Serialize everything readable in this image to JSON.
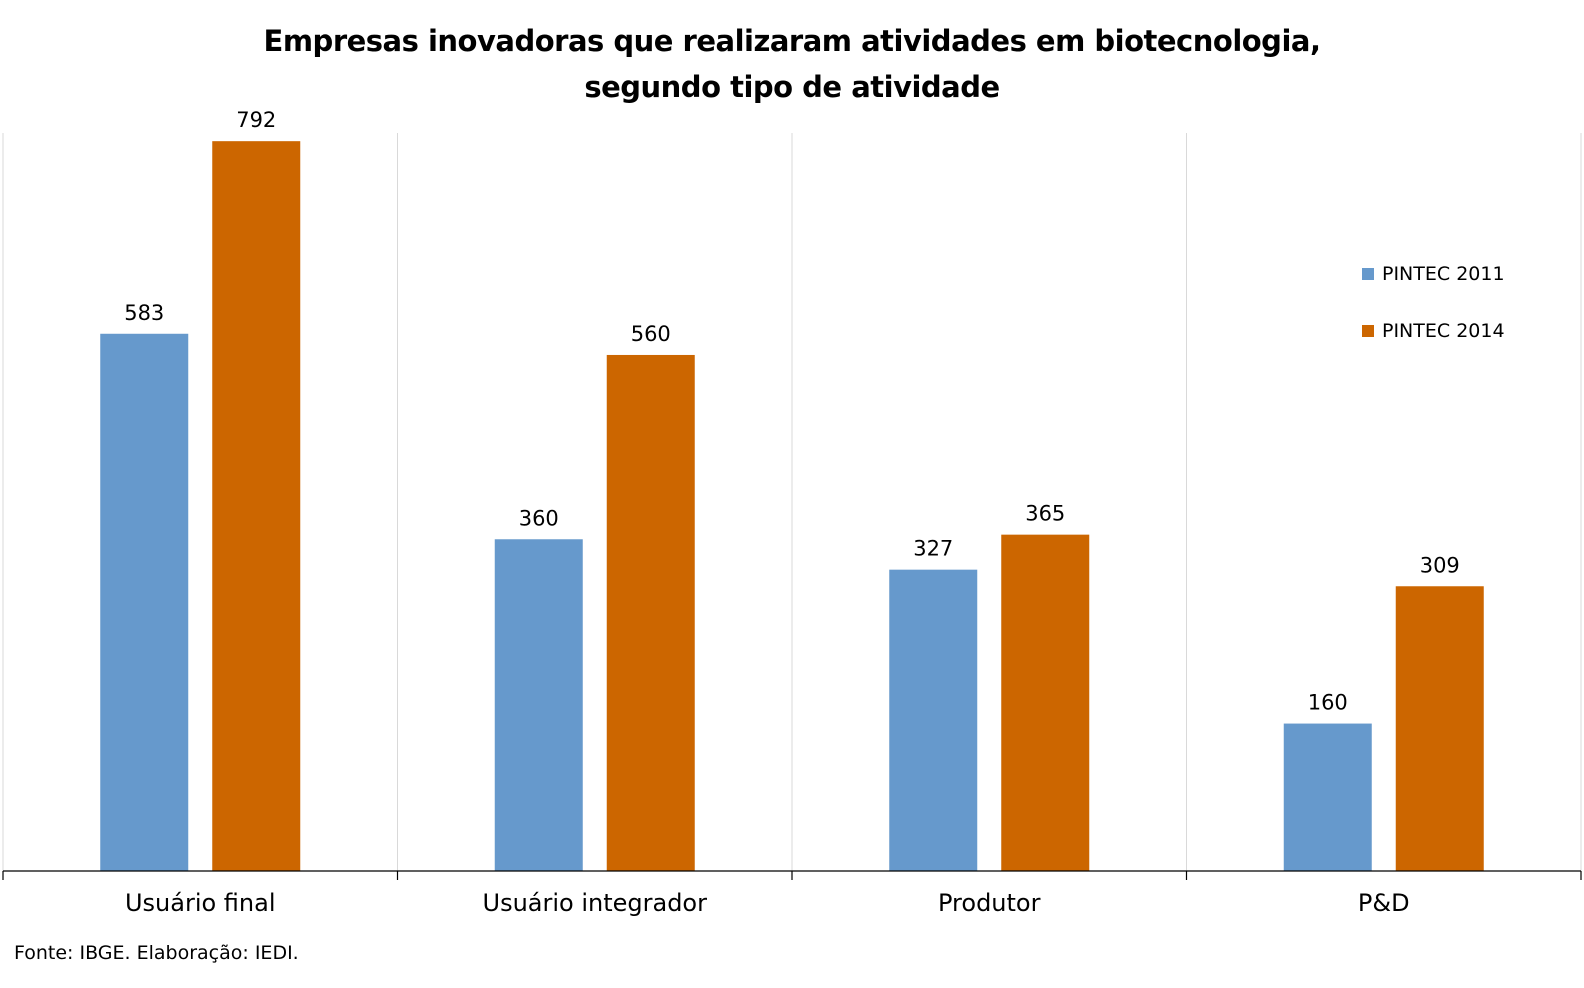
{
  "chart_data": {
    "type": "bar",
    "title_lines": [
      "Empresas inovadoras que realizaram atividades em biotecnologia,",
      "segundo tipo de atividade"
    ],
    "categories": [
      "Usuário final",
      "Usuário integrador",
      "Produtor",
      "P&D"
    ],
    "series": [
      {
        "name": "PINTEC 2011",
        "values": [
          583,
          360,
          327,
          160
        ],
        "color": "#6699cc"
      },
      {
        "name": "PINTEC 2014",
        "values": [
          792,
          560,
          365,
          309
        ],
        "color": "#cc6600"
      }
    ],
    "ylim": [
      0,
      800
    ],
    "grid": false,
    "category_separators": true,
    "legend_position": "right",
    "data_labels": true
  },
  "source": "Fonte: IBGE. Elaboração: IEDI."
}
